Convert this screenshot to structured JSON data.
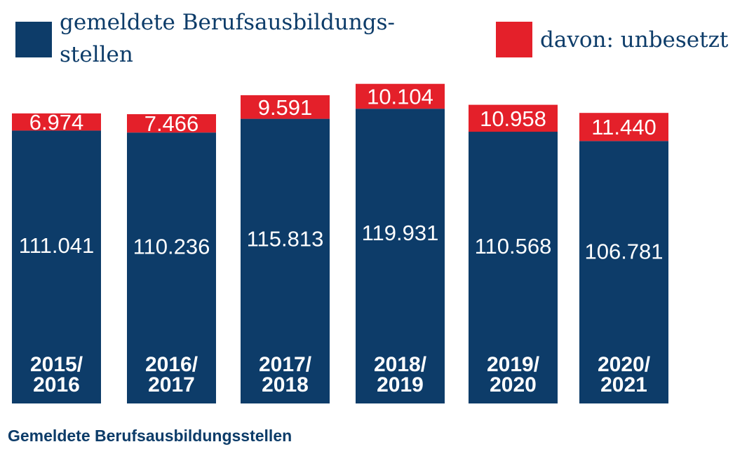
{
  "legend": {
    "total_label_line1": "gemeldete Berufsausbildungs-",
    "total_label_line2": "stellen",
    "unfilled_label": "davon: unbesetzt"
  },
  "caption": "Gemeldete Berufsausbildungsstellen",
  "colors": {
    "total": "#0d3c69",
    "unfilled": "#e4202a",
    "label_text": "#ffffff"
  },
  "chart_data": {
    "type": "bar",
    "stacked": true,
    "title": "",
    "categories": [
      [
        "2015/",
        "2016"
      ],
      [
        "2016/",
        "2017"
      ],
      [
        "2017/",
        "2018"
      ],
      [
        "2018/",
        "2019"
      ],
      [
        "2019/",
        "2020"
      ],
      [
        "2020/",
        "2021"
      ]
    ],
    "series": [
      {
        "name": "gemeldete Berufsausbildungsstellen",
        "values": [
          111041,
          110236,
          115813,
          119931,
          110568,
          106781
        ],
        "labels": [
          "111.041",
          "110.236",
          "115.813",
          "119.931",
          "110.568",
          "106.781"
        ]
      },
      {
        "name": "davon: unbesetzt",
        "values": [
          6974,
          7466,
          9591,
          10104,
          10958,
          11440
        ],
        "labels": [
          "6.974",
          "7.466",
          "9.591",
          "10.104",
          "10.958",
          "11.440"
        ]
      }
    ],
    "xlabel": "",
    "ylabel": "",
    "grid": false,
    "legend": "top",
    "y_axis_visible": false
  }
}
